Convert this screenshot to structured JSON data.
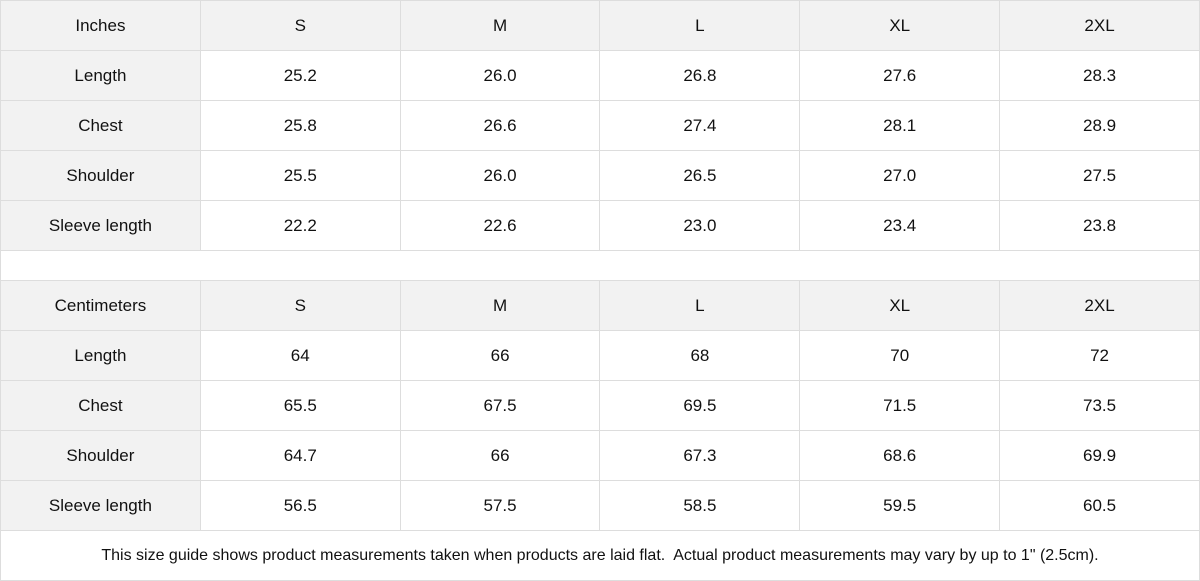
{
  "tables": [
    {
      "unit": "Inches",
      "sizes": [
        "S",
        "M",
        "L",
        "XL",
        "2XL"
      ],
      "rows": [
        {
          "label": "Length",
          "values": [
            "25.2",
            "26.0",
            "26.8",
            "27.6",
            "28.3"
          ]
        },
        {
          "label": "Chest",
          "values": [
            "25.8",
            "26.6",
            "27.4",
            "28.1",
            "28.9"
          ]
        },
        {
          "label": "Shoulder",
          "values": [
            "25.5",
            "26.0",
            "26.5",
            "27.0",
            "27.5"
          ]
        },
        {
          "label": "Sleeve length",
          "values": [
            "22.2",
            "22.6",
            "23.0",
            "23.4",
            "23.8"
          ]
        }
      ]
    },
    {
      "unit": "Centimeters",
      "sizes": [
        "S",
        "M",
        "L",
        "XL",
        "2XL"
      ],
      "rows": [
        {
          "label": "Length",
          "values": [
            "64",
            "66",
            "68",
            "70",
            "72"
          ]
        },
        {
          "label": "Chest",
          "values": [
            "65.5",
            "67.5",
            "69.5",
            "71.5",
            "73.5"
          ]
        },
        {
          "label": "Shoulder",
          "values": [
            "64.7",
            "66",
            "67.3",
            "68.6",
            "69.9"
          ]
        },
        {
          "label": "Sleeve length",
          "values": [
            "56.5",
            "57.5",
            "58.5",
            "59.5",
            "60.5"
          ]
        }
      ]
    }
  ],
  "note": "This size guide shows product measurements taken when products are laid flat.  Actual product measurements may vary by up to 1\" (2.5cm)."
}
